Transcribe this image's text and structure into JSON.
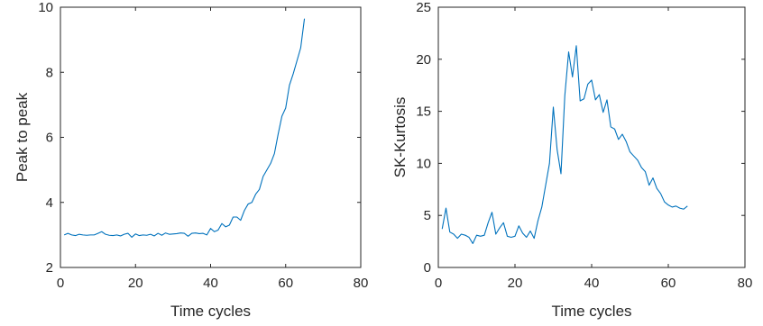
{
  "chart_data": [
    {
      "type": "line",
      "xlabel": "Time cycles",
      "ylabel": "Peak to peak",
      "xlim": [
        0,
        80
      ],
      "ylim": [
        2,
        10
      ],
      "xticks": [
        0,
        20,
        40,
        60,
        80
      ],
      "yticks": [
        2,
        4,
        6,
        8,
        10
      ],
      "grid": false,
      "legend": "none",
      "series": [
        {
          "color": "#0072bd",
          "x": [
            1,
            2,
            3,
            4,
            5,
            6,
            7,
            8,
            9,
            10,
            11,
            12,
            13,
            14,
            15,
            16,
            17,
            18,
            19,
            20,
            21,
            22,
            23,
            24,
            25,
            26,
            27,
            28,
            29,
            30,
            31,
            32,
            33,
            34,
            35,
            36,
            37,
            38,
            39,
            40,
            41,
            42,
            43,
            44,
            45,
            46,
            47,
            48,
            49,
            50,
            51,
            52,
            53,
            54,
            55,
            56,
            57,
            58,
            59,
            60,
            61,
            62,
            63,
            64,
            65
          ],
          "y": [
            3.0,
            3.05,
            3.0,
            2.98,
            3.02,
            3.0,
            2.99,
            3.0,
            3.0,
            3.05,
            3.1,
            3.02,
            2.99,
            2.98,
            3.0,
            2.97,
            3.02,
            3.05,
            2.93,
            3.03,
            2.98,
            3.0,
            2.99,
            3.02,
            2.97,
            3.05,
            2.99,
            3.06,
            3.02,
            3.03,
            3.04,
            3.06,
            3.05,
            2.96,
            3.05,
            3.06,
            3.04,
            3.05,
            3.0,
            3.2,
            3.1,
            3.15,
            3.35,
            3.25,
            3.3,
            3.55,
            3.55,
            3.45,
            3.75,
            3.95,
            4.0,
            4.25,
            4.4,
            4.8,
            5.0,
            5.2,
            5.5,
            6.1,
            6.65,
            6.9,
            7.6,
            7.95,
            8.35,
            8.75,
            9.65
          ]
        }
      ]
    },
    {
      "type": "line",
      "xlabel": "Time cycles",
      "ylabel": "SK-Kurtosis",
      "xlim": [
        0,
        80
      ],
      "ylim": [
        0,
        25
      ],
      "xticks": [
        0,
        20,
        40,
        60,
        80
      ],
      "yticks": [
        0,
        5,
        10,
        15,
        20,
        25
      ],
      "grid": false,
      "legend": "none",
      "series": [
        {
          "color": "#0072bd",
          "x": [
            1,
            2,
            3,
            4,
            5,
            6,
            7,
            8,
            9,
            10,
            11,
            12,
            13,
            14,
            15,
            16,
            17,
            18,
            19,
            20,
            21,
            22,
            23,
            24,
            25,
            26,
            27,
            28,
            29,
            30,
            31,
            32,
            33,
            34,
            35,
            36,
            37,
            38,
            39,
            40,
            41,
            42,
            43,
            44,
            45,
            46,
            47,
            48,
            49,
            50,
            51,
            52,
            53,
            54,
            55,
            56,
            57,
            58,
            59,
            60,
            61,
            62,
            63,
            64,
            65
          ],
          "y": [
            3.7,
            5.7,
            3.4,
            3.2,
            2.8,
            3.2,
            3.1,
            2.9,
            2.3,
            3.1,
            3.0,
            3.1,
            4.3,
            5.3,
            3.2,
            3.8,
            4.3,
            3.0,
            2.9,
            3.0,
            4.0,
            3.3,
            2.9,
            3.5,
            2.8,
            4.5,
            5.8,
            7.9,
            10.0,
            15.4,
            11.3,
            9.0,
            16.5,
            20.7,
            18.3,
            21.3,
            16.0,
            16.2,
            17.6,
            18.0,
            16.1,
            16.6,
            14.9,
            16.1,
            13.5,
            13.3,
            12.3,
            12.8,
            12.1,
            11.1,
            10.7,
            10.3,
            9.6,
            9.2,
            7.9,
            8.6,
            7.6,
            7.1,
            6.3,
            6.0,
            5.8,
            5.9,
            5.7,
            5.6,
            5.9
          ]
        }
      ]
    }
  ]
}
